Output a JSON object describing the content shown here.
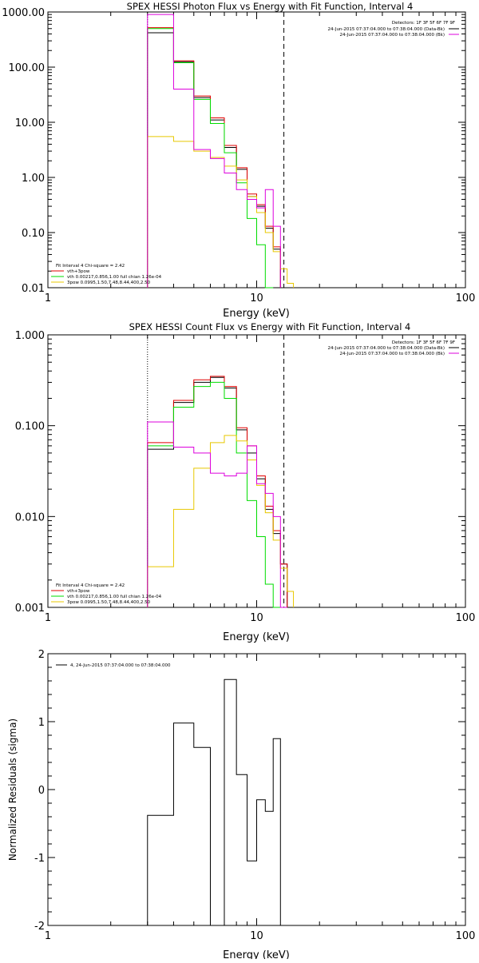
{
  "panels": [
    {
      "title": "SPEX HESSI Photon Flux vs Energy with Fit Function, Interval 4",
      "xlabel": "Energy (keV)",
      "ylabel": "",
      "detectors": "Detectors: 1F 3F 5F 6F 7F 9F",
      "legend_right": [
        "24-Jun-2015 07:37:04.000 to 07:38:04.000 (Data-Bk)",
        "24-Jun-2015 07:37:04.000 to 07:38:04.000 (Bk)"
      ],
      "legend_left": [
        "Fit Interval  4    Chi-square = 2.42",
        "vth+3pow",
        "vth 0.00217,0.856,1.00   full chian 1.26e-04",
        "3pow 0.0995,1.50,7.48,8.44,400,2.50"
      ]
    },
    {
      "title": "SPEX HESSI Count Flux vs Energy with Fit Function, Interval 4",
      "xlabel": "Energy (keV)",
      "ylabel": "",
      "detectors": "Detectors: 1F 3F 5F 6F 7F 9F",
      "legend_right": [
        "24-Jun-2015 07:37:04.000 to 07:38:04.000 (Data-Bk)",
        "24-Jun-2015 07:37:04.000 to 07:38:04.000 (Bk)"
      ],
      "legend_left": [
        "Fit Interval  4    Chi-square = 2.42",
        "vth+3pow",
        "vth 0.00217,0.856,1.00   full chian 1.26e-04",
        "3pow 0.0995,1.50,7.48,8.44,400,2.50"
      ]
    },
    {
      "title": "",
      "xlabel": "Energy (keV)",
      "ylabel": "Normalized Residuals (sigma)",
      "legend": "4, 24-Jun-2015 07:37:04.000 to 07:38:04.000"
    }
  ],
  "colors": {
    "data": "#000000",
    "total_fit": "#e00000",
    "thermal": "#00dd00",
    "powerlaw": "#e8c800",
    "background": "#dd00dd"
  },
  "chart_data": [
    {
      "type": "line",
      "step": true,
      "xscale": "log",
      "yscale": "log",
      "xlim": [
        1,
        100
      ],
      "ylim": [
        0.01,
        1000
      ],
      "xticks": [
        {
          "v": 1,
          "label": "1"
        },
        {
          "v": 10,
          "label": "10"
        },
        {
          "v": 100,
          "label": "100"
        }
      ],
      "yticks": [
        {
          "v": 1000,
          "label": "1000.00"
        },
        {
          "v": 100,
          "label": "100.00"
        },
        {
          "v": 10,
          "label": "10.00"
        },
        {
          "v": 1,
          "label": "1.00"
        },
        {
          "v": 0.1,
          "label": "0.10"
        },
        {
          "v": 0.01,
          "label": "0.01"
        }
      ],
      "vlines": [
        {
          "x": 3.0,
          "style": "dotted"
        },
        {
          "x": 13.5,
          "style": "dashed"
        }
      ],
      "edges": [
        3.0,
        4.0,
        5.0,
        6.0,
        7.0,
        8.0,
        9.0,
        10.0,
        11.0,
        12.0,
        13.0,
        14.0,
        15.0,
        16.0
      ],
      "series": [
        {
          "key": "data",
          "values": [
            420,
            125,
            28,
            11,
            3.5,
            1.4,
            0.45,
            0.3,
            0.12,
            0.05,
            null,
            null,
            null
          ]
        },
        {
          "key": "total_fit",
          "values": [
            520,
            130,
            30,
            12,
            3.8,
            1.5,
            0.5,
            0.32,
            0.13,
            0.055,
            null,
            null,
            null
          ]
        },
        {
          "key": "thermal",
          "values": [
            500,
            120,
            26,
            9.5,
            2.8,
            0.8,
            0.18,
            0.06,
            0.01,
            null,
            null,
            null,
            null
          ]
        },
        {
          "key": "powerlaw",
          "values": [
            5.5,
            4.5,
            3.0,
            2.3,
            1.6,
            0.9,
            0.45,
            0.23,
            0.1,
            0.045,
            0.022,
            0.012,
            null
          ]
        },
        {
          "key": "background",
          "values": [
            900,
            40,
            3.2,
            2.2,
            1.2,
            0.6,
            0.4,
            0.28,
            0.6,
            0.13,
            null,
            null,
            null
          ]
        }
      ]
    },
    {
      "type": "line",
      "step": true,
      "xscale": "log",
      "yscale": "log",
      "xlim": [
        1,
        100
      ],
      "ylim": [
        0.001,
        1
      ],
      "xticks": [
        {
          "v": 1,
          "label": "1"
        },
        {
          "v": 10,
          "label": "10"
        },
        {
          "v": 100,
          "label": "100"
        }
      ],
      "yticks": [
        {
          "v": 1,
          "label": "1.000"
        },
        {
          "v": 0.1,
          "label": "0.100"
        },
        {
          "v": 0.01,
          "label": "0.010"
        },
        {
          "v": 0.001,
          "label": "0.001"
        }
      ],
      "vlines": [
        {
          "x": 3.0,
          "style": "dotted"
        },
        {
          "x": 13.5,
          "style": "dashed"
        }
      ],
      "edges": [
        3.0,
        4.0,
        5.0,
        6.0,
        7.0,
        8.0,
        9.0,
        10.0,
        11.0,
        12.0,
        13.0,
        14.0,
        15.0,
        16.0
      ],
      "series": [
        {
          "key": "data",
          "values": [
            0.055,
            0.18,
            0.3,
            0.34,
            0.26,
            0.09,
            0.05,
            0.026,
            0.012,
            0.0065,
            0.003,
            null,
            null
          ]
        },
        {
          "key": "total_fit",
          "values": [
            0.065,
            0.19,
            0.32,
            0.35,
            0.27,
            0.095,
            0.06,
            0.028,
            0.013,
            0.007,
            0.003,
            null,
            null
          ]
        },
        {
          "key": "thermal",
          "values": [
            0.06,
            0.16,
            0.27,
            0.3,
            0.2,
            0.05,
            0.015,
            0.006,
            0.0018,
            0.0008,
            null,
            null,
            null
          ]
        },
        {
          "key": "powerlaw",
          "values": [
            0.0028,
            0.012,
            0.034,
            0.065,
            0.078,
            0.068,
            0.042,
            0.022,
            0.011,
            0.0055,
            0.0027,
            0.0015,
            null
          ]
        },
        {
          "key": "background",
          "values": [
            0.11,
            0.058,
            0.05,
            0.03,
            0.028,
            0.03,
            0.06,
            0.023,
            0.018,
            0.01,
            0.0006,
            null,
            null
          ]
        }
      ]
    },
    {
      "type": "line",
      "step": true,
      "xscale": "log",
      "yscale": "linear",
      "xlim": [
        1,
        100
      ],
      "ylim": [
        -2,
        2
      ],
      "xticks": [
        {
          "v": 1,
          "label": "1"
        },
        {
          "v": 10,
          "label": "10"
        },
        {
          "v": 100,
          "label": "100"
        }
      ],
      "yticks": [
        {
          "v": 2,
          "label": "2"
        },
        {
          "v": 1,
          "label": "1"
        },
        {
          "v": 0,
          "label": "0"
        },
        {
          "v": -1,
          "label": "-1"
        },
        {
          "v": -2,
          "label": "-2"
        }
      ],
      "edges": [
        3.0,
        4.0,
        5.0,
        6.0,
        7.0,
        8.0,
        9.0,
        10.0,
        11.0,
        12.0,
        13.0,
        14.0
      ],
      "series": [
        {
          "key": "data",
          "values": [
            -0.38,
            0.98,
            0.62,
            -2.0,
            1.62,
            0.22,
            -1.05,
            -0.15,
            -0.32,
            0.75,
            null
          ]
        }
      ]
    }
  ]
}
